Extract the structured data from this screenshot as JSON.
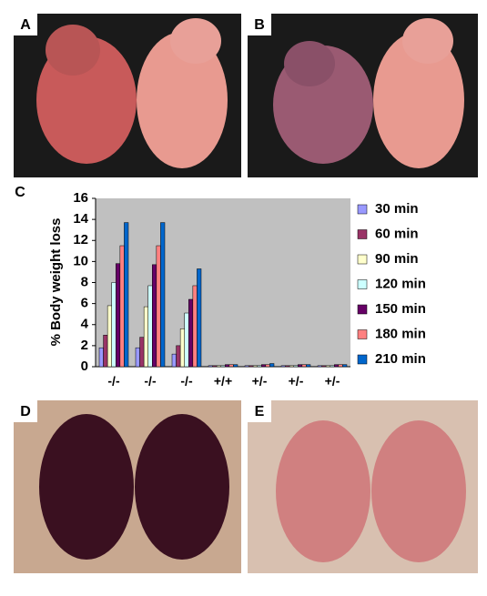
{
  "panel_labels": [
    "A",
    "B",
    "C",
    "D",
    "E"
  ],
  "chart_data": {
    "type": "bar",
    "y_label": "% Body weight loss",
    "categories": [
      "-/-",
      "-/-",
      "-/-",
      "+/+",
      "+/-",
      "+/-",
      "+/-"
    ],
    "series": [
      {
        "name": "30 min",
        "color": "#9999ff",
        "values": [
          1.8,
          1.8,
          1.2,
          0.1,
          0.1,
          0.1,
          0.1
        ]
      },
      {
        "name": "60 min",
        "color": "#993366",
        "values": [
          3.0,
          2.8,
          2.0,
          0.1,
          0.1,
          0.1,
          0.1
        ]
      },
      {
        "name": "90 min",
        "color": "#ffffcc",
        "values": [
          5.8,
          5.7,
          3.6,
          0.1,
          0.1,
          0.1,
          0.1
        ]
      },
      {
        "name": "120 min",
        "color": "#ccffff",
        "values": [
          8.0,
          7.7,
          5.1,
          0.1,
          0.1,
          0.1,
          0.1
        ]
      },
      {
        "name": "150 min",
        "color": "#660066",
        "values": [
          9.8,
          9.7,
          6.4,
          0.2,
          0.2,
          0.2,
          0.2
        ]
      },
      {
        "name": "180 min",
        "color": "#ff8080",
        "values": [
          11.5,
          11.5,
          7.7,
          0.2,
          0.2,
          0.2,
          0.2
        ]
      },
      {
        "name": "210 min",
        "color": "#0066cc",
        "values": [
          13.7,
          13.7,
          9.3,
          0.2,
          0.3,
          0.2,
          0.2
        ]
      }
    ],
    "ylim": [
      0,
      16
    ],
    "yticks": [
      0,
      2,
      4,
      6,
      8,
      10,
      12,
      14,
      16
    ],
    "plot_background": "#c0c0c0"
  }
}
